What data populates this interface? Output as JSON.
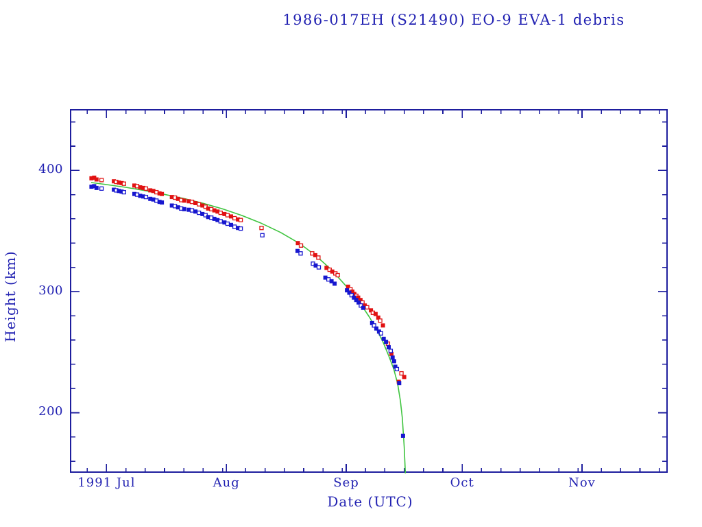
{
  "page": {
    "background": "#ffffff"
  },
  "colors": {
    "text": "#2222b2",
    "frame": "#1e1e9e",
    "apogee_red": "#e11212",
    "perigee_blue": "#1717cf",
    "fit_green": "#3fc43f",
    "background": "#ffffff"
  },
  "chart_data": {
    "type": "scatter",
    "title": "1986-017EH (S21490) EO-9 EVA-1 debris",
    "xlabel": "Date (UTC)",
    "ylabel": "Height (km)",
    "grid": false,
    "legend": "none",
    "x_axis": {
      "unit": "days since 1991 Jul 1",
      "range_days": [
        -9.3,
        145
      ],
      "months": [
        {
          "t": 0,
          "label": "1991 Jul"
        },
        {
          "t": 31,
          "label": "Aug"
        },
        {
          "t": 62,
          "label": "Sep"
        },
        {
          "t": 92,
          "label": "Oct"
        },
        {
          "t": 123,
          "label": "Nov"
        }
      ],
      "minor_ticks_days": [
        -5,
        5,
        10,
        15,
        20,
        25,
        30,
        36,
        41,
        46,
        51,
        56,
        61,
        67,
        72,
        77,
        82,
        87,
        97,
        102,
        107,
        112,
        117,
        122,
        128,
        133,
        138,
        143
      ]
    },
    "y_axis": {
      "range_km": [
        151,
        450
      ],
      "major_ticks": [
        {
          "v": 200,
          "label": "200"
        },
        {
          "v": 300,
          "label": "300"
        },
        {
          "v": 400,
          "label": "400"
        }
      ],
      "minor_step_km": 20
    },
    "series": [
      {
        "name": "apogee-height",
        "type": "scatter",
        "marker": "square",
        "color": "#e11212",
        "points": [
          [
            -3.9,
            393.5
          ],
          [
            -3.2,
            394
          ],
          [
            -2.6,
            392.5
          ],
          [
            -1.3,
            392,
            0
          ],
          [
            1.9,
            391
          ],
          [
            2.5,
            390.5,
            0
          ],
          [
            3.2,
            390
          ],
          [
            3.9,
            389.5
          ],
          [
            4.5,
            389,
            0
          ],
          [
            7.2,
            387.5
          ],
          [
            7.9,
            387,
            0
          ],
          [
            8.7,
            386
          ],
          [
            9.5,
            385.5
          ],
          [
            10.2,
            385,
            0
          ],
          [
            11.3,
            383.5
          ],
          [
            12.1,
            383
          ],
          [
            12.9,
            382,
            0
          ],
          [
            13.7,
            381
          ],
          [
            14.3,
            380.5
          ],
          [
            16.9,
            378
          ],
          [
            17.7,
            377.5,
            0
          ],
          [
            18.5,
            376.5
          ],
          [
            19.3,
            375.5,
            0
          ],
          [
            20.1,
            375
          ],
          [
            21.3,
            374.5
          ],
          [
            22.1,
            374,
            0
          ],
          [
            23.0,
            373
          ],
          [
            23.9,
            372,
            0
          ],
          [
            24.8,
            371
          ],
          [
            25.6,
            370,
            0
          ],
          [
            26.3,
            368.5
          ],
          [
            27.1,
            368,
            0
          ],
          [
            27.9,
            367
          ],
          [
            28.7,
            366
          ],
          [
            29.5,
            365,
            0
          ],
          [
            30.5,
            364
          ],
          [
            31.3,
            363,
            0
          ],
          [
            32.2,
            362
          ],
          [
            33.1,
            360.5,
            0
          ],
          [
            34.0,
            359.5
          ],
          [
            34.7,
            359,
            0
          ],
          [
            40.1,
            352.5,
            0
          ],
          [
            49.5,
            340
          ],
          [
            50.3,
            338,
            0
          ],
          [
            53.2,
            331.5,
            0
          ],
          [
            54.0,
            330
          ],
          [
            54.8,
            328,
            0
          ],
          [
            56.9,
            319.5
          ],
          [
            57.7,
            318,
            0
          ],
          [
            58.4,
            316.5
          ],
          [
            59.2,
            315,
            0
          ],
          [
            59.8,
            313.5,
            0
          ],
          [
            62.5,
            304
          ],
          [
            63.1,
            302,
            0
          ],
          [
            63.6,
            300
          ],
          [
            64.1,
            298
          ],
          [
            64.6,
            296.5,
            0
          ],
          [
            65.1,
            295
          ],
          [
            65.7,
            293
          ],
          [
            66.2,
            291,
            0
          ],
          [
            66.8,
            288.5
          ],
          [
            67.4,
            287,
            0
          ],
          [
            68.4,
            284.5
          ],
          [
            68.9,
            282.5,
            0
          ],
          [
            69.6,
            281.5
          ],
          [
            70.3,
            278.5
          ],
          [
            70.8,
            276,
            0
          ],
          [
            71.5,
            272
          ],
          [
            72.8,
            257,
            0
          ],
          [
            73.7,
            248.5
          ],
          [
            75.6,
            225.5
          ],
          [
            76.3,
            232.5,
            0
          ],
          [
            77.0,
            229.5
          ]
        ]
      },
      {
        "name": "perigee-height",
        "type": "scatter",
        "marker": "square",
        "color": "#1717cf",
        "points": [
          [
            -3.9,
            386.5
          ],
          [
            -3.2,
            387
          ],
          [
            -2.6,
            385.5
          ],
          [
            -1.3,
            385,
            0
          ],
          [
            1.9,
            384
          ],
          [
            2.5,
            383.5,
            0
          ],
          [
            3.2,
            383
          ],
          [
            3.9,
            382.5
          ],
          [
            4.5,
            382,
            0
          ],
          [
            7.2,
            380.5
          ],
          [
            7.9,
            380,
            0
          ],
          [
            8.7,
            379
          ],
          [
            9.5,
            378.5
          ],
          [
            10.2,
            378,
            0
          ],
          [
            11.3,
            376.5
          ],
          [
            12.1,
            376
          ],
          [
            12.9,
            375,
            0
          ],
          [
            13.7,
            374
          ],
          [
            14.3,
            373.5
          ],
          [
            16.9,
            371
          ],
          [
            17.7,
            370.5,
            0
          ],
          [
            18.5,
            369.5
          ],
          [
            19.3,
            368.5,
            0
          ],
          [
            20.1,
            368
          ],
          [
            21.3,
            367.5
          ],
          [
            22.1,
            367,
            0
          ],
          [
            23.0,
            366
          ],
          [
            23.9,
            365,
            0
          ],
          [
            24.8,
            364
          ],
          [
            25.6,
            363,
            0
          ],
          [
            26.3,
            361.5
          ],
          [
            27.1,
            361,
            0
          ],
          [
            27.9,
            360
          ],
          [
            28.7,
            359
          ],
          [
            29.5,
            358,
            0
          ],
          [
            30.5,
            357
          ],
          [
            31.3,
            356,
            0
          ],
          [
            32.2,
            355
          ],
          [
            33.1,
            353.5,
            0
          ],
          [
            34.0,
            352.5
          ],
          [
            34.7,
            352,
            0
          ],
          [
            40.3,
            346.5,
            0
          ],
          [
            49.4,
            333.5
          ],
          [
            50.2,
            331.5,
            0
          ],
          [
            53.4,
            323,
            0
          ],
          [
            54.1,
            321.5
          ],
          [
            54.9,
            320,
            0
          ],
          [
            56.6,
            311.5
          ],
          [
            57.4,
            310,
            0
          ],
          [
            58.2,
            308.5
          ],
          [
            59.0,
            306.5
          ],
          [
            62.2,
            301
          ],
          [
            62.8,
            299
          ],
          [
            63.4,
            297,
            0
          ],
          [
            64.0,
            295
          ],
          [
            64.6,
            293
          ],
          [
            65.2,
            291
          ],
          [
            65.8,
            288.5,
            0
          ],
          [
            66.4,
            286.5
          ],
          [
            68.7,
            274
          ],
          [
            69.2,
            272,
            0
          ],
          [
            69.8,
            269.5
          ],
          [
            70.5,
            267
          ],
          [
            71.0,
            265.5,
            0
          ],
          [
            71.7,
            261
          ],
          [
            72.3,
            258.5
          ],
          [
            73.0,
            254
          ],
          [
            73.5,
            251,
            0
          ],
          [
            74.0,
            245.5
          ],
          [
            74.4,
            242.5
          ],
          [
            74.7,
            238
          ],
          [
            75.1,
            236,
            0
          ],
          [
            75.7,
            224.5
          ],
          [
            76.7,
            181
          ]
        ]
      },
      {
        "name": "decay-fit-curve",
        "type": "line",
        "color": "#3fc43f",
        "points": [
          [
            -4,
            390
          ],
          [
            0,
            388.3
          ],
          [
            5,
            386
          ],
          [
            10,
            383.3
          ],
          [
            15,
            380.2
          ],
          [
            20,
            376.8
          ],
          [
            25,
            372.8
          ],
          [
            30,
            368.2
          ],
          [
            35,
            362.8
          ],
          [
            40,
            356.4
          ],
          [
            45,
            348.8
          ],
          [
            50,
            339.5
          ],
          [
            54,
            330
          ],
          [
            58,
            318.5
          ],
          [
            61,
            308
          ],
          [
            63.5,
            299
          ],
          [
            66,
            288.5
          ],
          [
            68,
            279
          ],
          [
            70,
            268
          ],
          [
            71.5,
            258.5
          ],
          [
            73,
            247
          ],
          [
            74.3,
            236
          ],
          [
            75.3,
            224
          ],
          [
            76.0,
            210
          ],
          [
            76.5,
            196
          ],
          [
            77.0,
            172
          ],
          [
            77.3,
            150
          ]
        ]
      }
    ]
  }
}
